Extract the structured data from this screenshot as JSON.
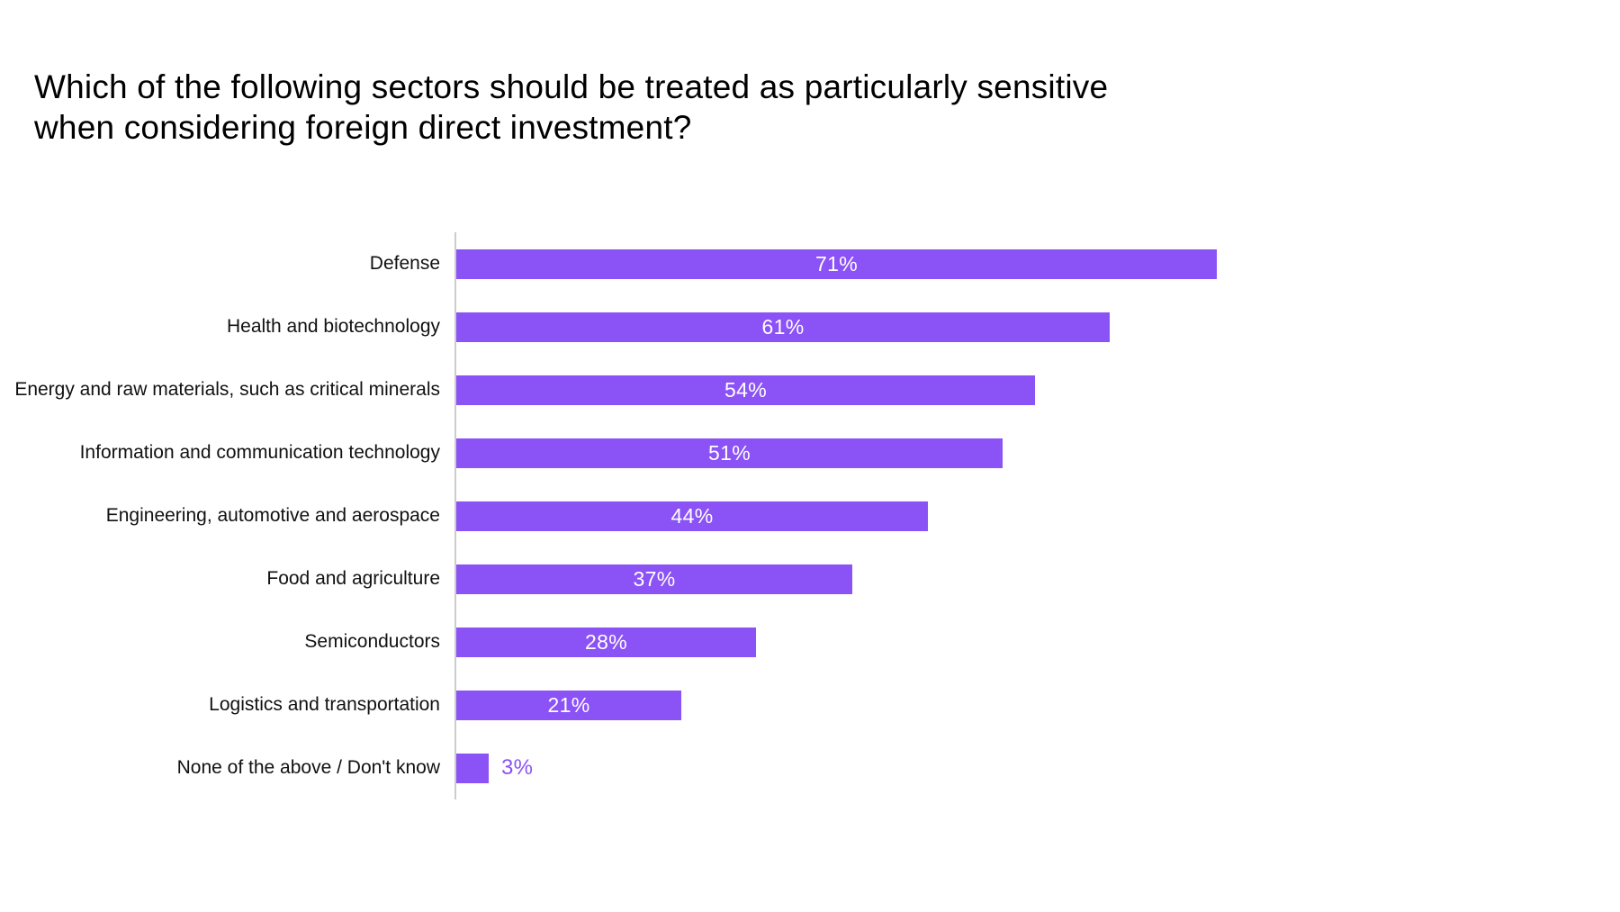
{
  "title": "Which of the following sectors should be treated as particularly sensitive when considering foreign direct investment?",
  "chart_data": {
    "type": "bar",
    "orientation": "horizontal",
    "title": "Which of the following sectors should be treated as particularly sensitive when considering foreign direct investment?",
    "categories": [
      "Defense",
      "Health and biotechnology",
      "Energy and raw materials, such as critical minerals",
      "Information and communication technology",
      "Engineering, automotive and aerospace",
      "Food and agriculture",
      "Semiconductors",
      "Logistics and transportation",
      "None of the above / Don't know"
    ],
    "values": [
      71,
      61,
      54,
      51,
      44,
      37,
      28,
      21,
      3
    ],
    "value_labels": [
      "71%",
      "61%",
      "54%",
      "51%",
      "44%",
      "37%",
      "28%",
      "21%",
      "3%"
    ],
    "value_suffix": "%",
    "xlabel": "",
    "ylabel": "",
    "xlim": [
      0,
      75
    ],
    "grid": false,
    "legend": "none",
    "colors": {
      "bar": "#8b52f6",
      "value_label_inside": "#ffffff",
      "value_label_outside": "#8b52f6",
      "category_label": "#111111",
      "title": "#000000",
      "axis_line": "#cccccc",
      "background": "#ffffff"
    }
  }
}
